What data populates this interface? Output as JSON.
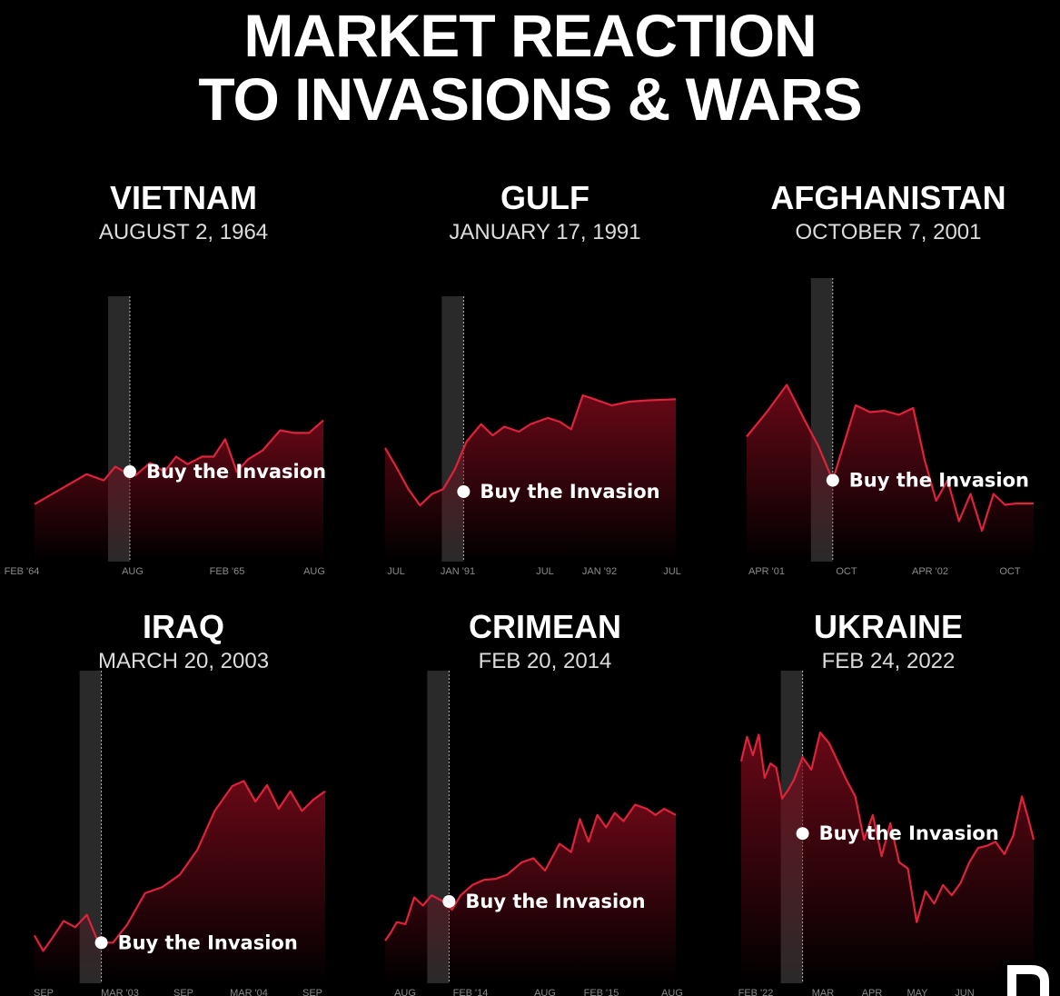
{
  "title": {
    "line1": "MARKET REACTION",
    "line2": "TO INVASIONS & WARS"
  },
  "colors": {
    "line": "#e0223c",
    "fill_top": "#7a0a1a",
    "band": "#2a2a2a",
    "text": "#ffffff",
    "tick": "#8a8a8a"
  },
  "logo_icon": "brand-logo-icon",
  "chart_data": [
    {
      "type": "area",
      "title": "VIETNAM",
      "subtitle": "AUGUST 2, 1964",
      "tick_labels": [
        "FEB '64",
        "AUG",
        "FEB '65",
        "AUG"
      ],
      "annotation": "Buy the Invasion",
      "x": [
        0,
        0.06,
        0.12,
        0.18,
        0.24,
        0.28,
        0.31,
        0.35,
        0.4,
        0.45,
        0.49,
        0.53,
        0.58,
        0.62,
        0.66,
        0.7,
        0.74,
        0.79,
        0.85,
        0.9,
        0.95,
        1.0
      ],
      "values": [
        30,
        38,
        46,
        54,
        49,
        60,
        56,
        53,
        63,
        56,
        68,
        62,
        68,
        68,
        82,
        56,
        66,
        73,
        89,
        87,
        87,
        97
      ],
      "event_x": 0.33,
      "annotation_value": 56
    },
    {
      "type": "area",
      "title": "GULF",
      "subtitle": "JANUARY 17, 1991",
      "tick_labels": [
        "JUL",
        "JAN '91",
        "JUL",
        "JAN '92",
        "JUL"
      ],
      "annotation": "Buy the Invasion",
      "x": [
        0,
        0.04,
        0.08,
        0.12,
        0.16,
        0.2,
        0.24,
        0.28,
        0.33,
        0.37,
        0.41,
        0.46,
        0.5,
        0.56,
        0.6,
        0.64,
        0.68,
        0.72,
        0.78,
        0.84,
        0.9,
        1.0
      ],
      "values": [
        75,
        59,
        42,
        29,
        38,
        42,
        58,
        80,
        94,
        85,
        92,
        88,
        94,
        99,
        96,
        90,
        117,
        114,
        109,
        112,
        113,
        114
      ],
      "event_x": 0.27,
      "annotation_value": 40
    },
    {
      "type": "area",
      "title": "AFGHANISTAN",
      "subtitle": "OCTOBER 7, 2001",
      "tick_labels": [
        "APR '01",
        "OCT",
        "APR '02",
        "OCT"
      ],
      "annotation": "Buy the Invasion",
      "x": [
        0,
        0.07,
        0.14,
        0.2,
        0.25,
        0.3,
        0.38,
        0.43,
        0.48,
        0.53,
        0.58,
        0.62,
        0.66,
        0.7,
        0.74,
        0.78,
        0.82,
        0.86,
        0.9,
        0.94,
        1.0
      ],
      "values": [
        77,
        95,
        115,
        90,
        70,
        45,
        100,
        95,
        96,
        93,
        98,
        60,
        30,
        45,
        15,
        35,
        8,
        35,
        27,
        28,
        28
      ],
      "event_x": 0.3,
      "annotation_value": 45
    },
    {
      "type": "area",
      "title": "IRAQ",
      "subtitle": "MARCH 20, 2003",
      "tick_labels": [
        "SEP",
        "MAR '03",
        "SEP",
        "MAR '04",
        "SEP"
      ],
      "annotation": "Buy the Invasion",
      "x": [
        0,
        0.03,
        0.06,
        0.1,
        0.14,
        0.18,
        0.22,
        0.27,
        0.32,
        0.38,
        0.44,
        0.5,
        0.56,
        0.62,
        0.68,
        0.72,
        0.76,
        0.8,
        0.84,
        0.88,
        0.92,
        0.96,
        1.0
      ],
      "values": [
        27,
        12,
        24,
        41,
        35,
        47,
        20,
        20,
        38,
        68,
        74,
        86,
        110,
        148,
        172,
        177,
        157,
        173,
        150,
        167,
        148,
        159,
        167
      ],
      "event_x": 0.23,
      "annotation_value": 20
    },
    {
      "type": "area",
      "title": "CRIMEAN",
      "subtitle": "FEB 20, 2014",
      "tick_labels": [
        "AUG",
        "FEB '14",
        "AUG",
        "FEB '15",
        "AUG"
      ],
      "annotation": "Buy the Invasion",
      "x": [
        0,
        0.02,
        0.04,
        0.07,
        0.1,
        0.13,
        0.16,
        0.2,
        0.23,
        0.26,
        0.3,
        0.34,
        0.38,
        0.42,
        0.47,
        0.51,
        0.55,
        0.6,
        0.64,
        0.67,
        0.7,
        0.73,
        0.76,
        0.79,
        0.82,
        0.86,
        0.9,
        0.93,
        0.96,
        1.0
      ],
      "values": [
        22,
        30,
        40,
        38,
        64,
        56,
        66,
        60,
        52,
        66,
        76,
        81,
        82,
        86,
        98,
        102,
        90,
        116,
        108,
        140,
        118,
        144,
        132,
        146,
        138,
        154,
        150,
        144,
        150,
        144
      ],
      "event_x": 0.22,
      "annotation_value": 60
    },
    {
      "type": "area",
      "title": "UKRAINE",
      "subtitle": "FEB 24, 2022",
      "tick_labels": [
        "FEB '22",
        "MAR",
        "APR",
        "MAY",
        "JUN"
      ],
      "annotation": "Buy the Invasion",
      "x": [
        0,
        0.02,
        0.04,
        0.06,
        0.08,
        0.1,
        0.12,
        0.14,
        0.16,
        0.18,
        0.21,
        0.24,
        0.27,
        0.3,
        0.33,
        0.36,
        0.39,
        0.42,
        0.45,
        0.48,
        0.51,
        0.54,
        0.57,
        0.6,
        0.63,
        0.66,
        0.69,
        0.72,
        0.75,
        0.78,
        0.81,
        0.84,
        0.87,
        0.9,
        0.93,
        0.96,
        0.98,
        1.0
      ],
      "values": [
        196,
        220,
        202,
        222,
        180,
        194,
        190,
        160,
        168,
        178,
        200,
        188,
        224,
        214,
        196,
        178,
        162,
        120,
        144,
        104,
        136,
        98,
        92,
        40,
        70,
        58,
        76,
        66,
        78,
        98,
        112,
        114,
        118,
        106,
        124,
        162,
        142,
        120
      ],
      "event_x": 0.21,
      "annotation_value": 126
    }
  ]
}
